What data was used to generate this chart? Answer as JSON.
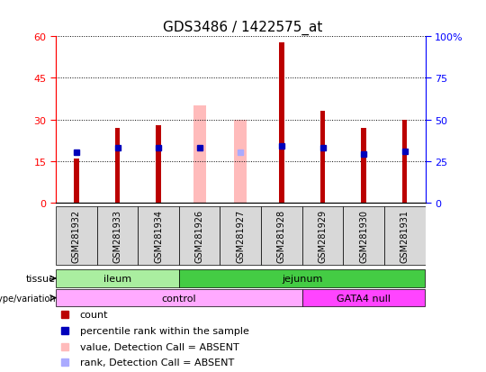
{
  "title": "GDS3486 / 1422575_at",
  "samples": [
    "GSM281932",
    "GSM281933",
    "GSM281934",
    "GSM281926",
    "GSM281927",
    "GSM281928",
    "GSM281929",
    "GSM281930",
    "GSM281931"
  ],
  "count_values": [
    16,
    27,
    28,
    null,
    null,
    58,
    33,
    27,
    30
  ],
  "count_absent_values": [
    null,
    null,
    null,
    35,
    30,
    null,
    null,
    null,
    null
  ],
  "percentile_rank": [
    30,
    33,
    33,
    33,
    null,
    34,
    33,
    29,
    31
  ],
  "percentile_rank_absent": [
    null,
    null,
    null,
    null,
    30,
    null,
    null,
    null,
    null
  ],
  "percentile_absent_rank_val": [
    null,
    null,
    null,
    null,
    30,
    null,
    null,
    null,
    null
  ],
  "ylim_left": [
    0,
    60
  ],
  "ylim_right": [
    0,
    100
  ],
  "yticks_left": [
    0,
    15,
    30,
    45,
    60
  ],
  "yticks_right": [
    0,
    25,
    50,
    75,
    100
  ],
  "ytick_labels_left": [
    "0",
    "15",
    "30",
    "45",
    "60"
  ],
  "ytick_labels_right": [
    "0",
    "25",
    "50",
    "75",
    "100%"
  ],
  "tissue_groups": [
    {
      "label": "ileum",
      "start": 0,
      "end": 3,
      "color": "#aaeea0"
    },
    {
      "label": "jejunum",
      "start": 3,
      "end": 9,
      "color": "#44cc44"
    }
  ],
  "genotype_groups": [
    {
      "label": "control",
      "start": 0,
      "end": 6,
      "color": "#ffaaff"
    },
    {
      "label": "GATA4 null",
      "start": 6,
      "end": 9,
      "color": "#ff44ff"
    }
  ],
  "count_color": "#bb0000",
  "absent_value_color": "#ffbbbb",
  "absent_rank_color": "#aaaaff",
  "percentile_color": "#0000bb",
  "bar_width": 0.12,
  "background_color": "#ffffff",
  "grid_color": "#000000",
  "label_fontsize": 8,
  "title_fontsize": 11,
  "tick_fontsize": 8,
  "sample_fontsize": 7,
  "legend_fontsize": 8,
  "tissue_label": "tissue",
  "genotype_label": "genotype/variation",
  "legend_items": [
    {
      "label": "count",
      "color": "#bb0000",
      "marker": "s"
    },
    {
      "label": "percentile rank within the sample",
      "color": "#0000bb",
      "marker": "s"
    },
    {
      "label": "value, Detection Call = ABSENT",
      "color": "#ffbbbb",
      "marker": "s"
    },
    {
      "label": "rank, Detection Call = ABSENT",
      "color": "#aaaaff",
      "marker": "s"
    }
  ]
}
